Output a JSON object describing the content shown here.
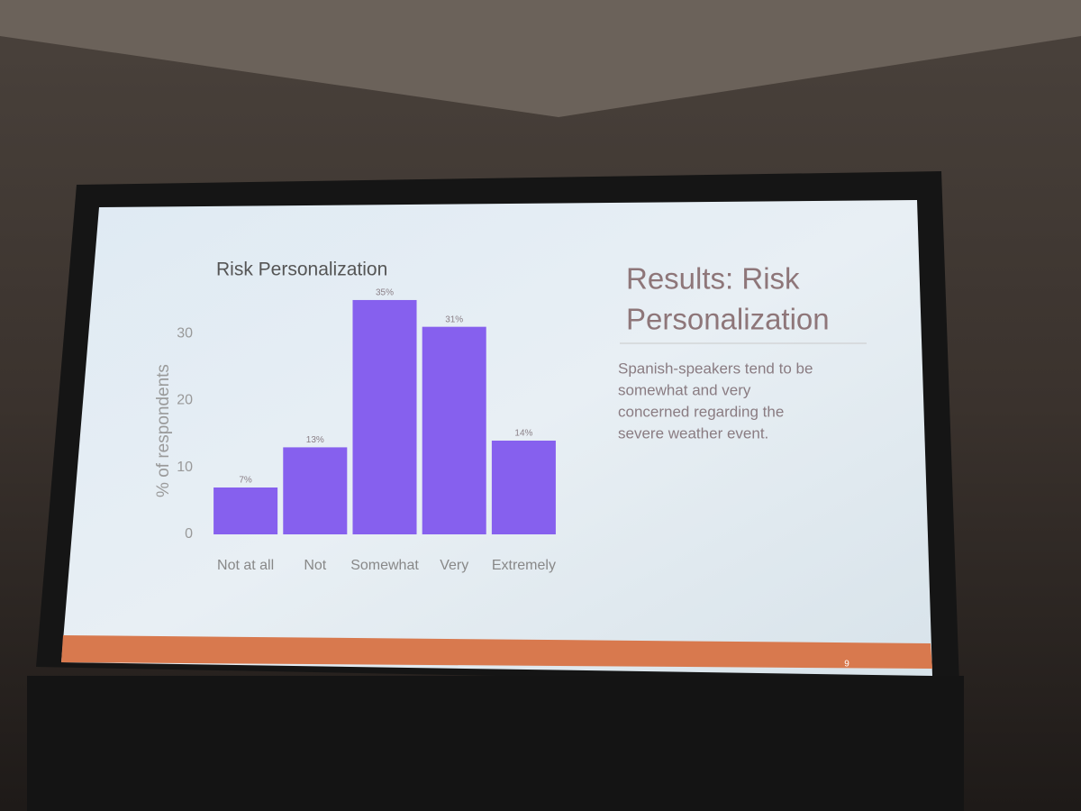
{
  "chart_data": {
    "type": "bar",
    "title": "Risk Personalization",
    "y_label": "% of respondents",
    "categories": [
      "Not at all",
      "Not",
      "Somewhat",
      "Very",
      "Extremely"
    ],
    "values": [
      7,
      13,
      35,
      31,
      14
    ],
    "value_labels": [
      "7%",
      "13%",
      "35%",
      "31%",
      "14%"
    ],
    "color": "#8660ee",
    "ylim": [
      0,
      36
    ],
    "yticks": [
      0,
      10,
      20,
      30
    ],
    "grid": false
  },
  "slide": {
    "heading_lines": [
      "Results: Risk",
      "Personalization"
    ],
    "body_lines": [
      "Spanish-speakers tend to be",
      "somewhat and very",
      "concerned regarding the",
      "severe weather event."
    ],
    "page_number": "9"
  }
}
